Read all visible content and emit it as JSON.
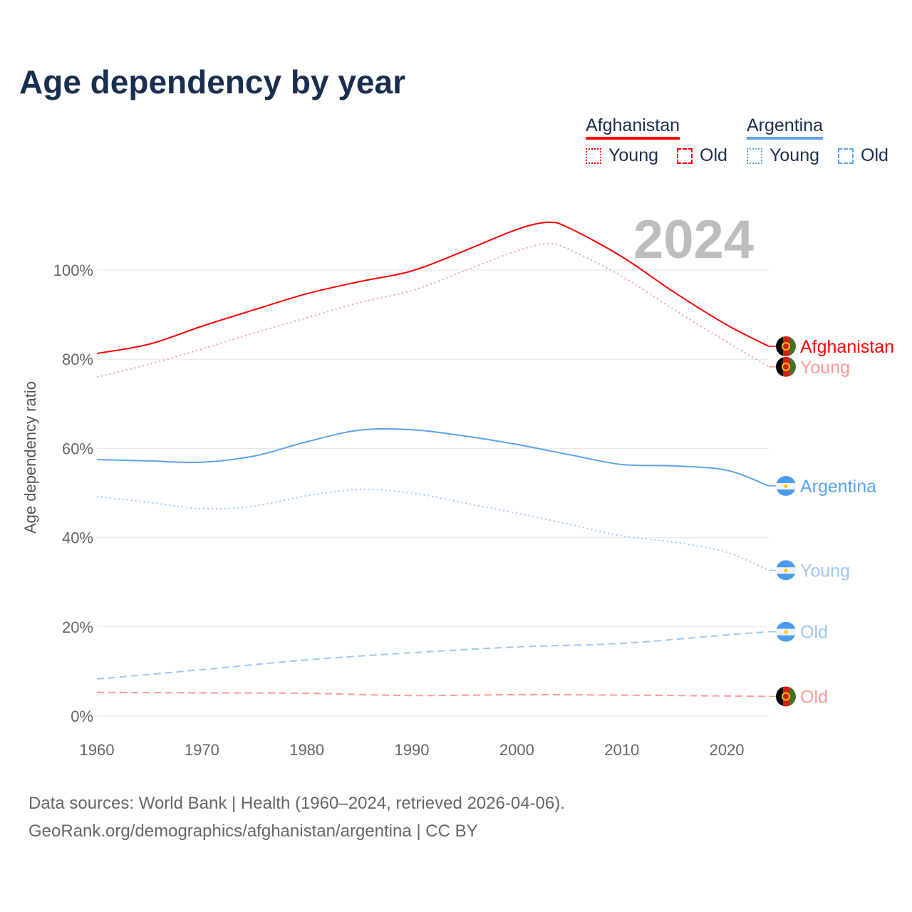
{
  "title": "Age dependency by year",
  "legend": {
    "groups": [
      {
        "country": "Afghanistan",
        "color": "#ff0000",
        "young": "Young",
        "old": "Old"
      },
      {
        "country": "Argentina",
        "color": "#5ba4ec",
        "young": "Young",
        "old": "Old"
      }
    ]
  },
  "year_watermark": "2024",
  "footer": {
    "line1": "Data sources: World Bank | Health (1960–2024, retrieved 2026-04-06).",
    "line2": "GeoRank.org/demographics/afghanistan/argentina | CC BY"
  },
  "chart_data": {
    "type": "line",
    "title": "Age dependency by year",
    "xlabel": "",
    "ylabel": "Age dependency ratio",
    "xlim": [
      1960,
      2024
    ],
    "ylim": [
      0,
      110
    ],
    "x_ticks": [
      "1960",
      "1970",
      "1980",
      "1990",
      "2000",
      "2010",
      "2020"
    ],
    "y_ticks": [
      "0%",
      "20%",
      "40%",
      "60%",
      "80%",
      "100%"
    ],
    "grid": true,
    "series": [
      {
        "name": "Afghanistan",
        "end_label": "Afghanistan",
        "flag": "afghanistan",
        "color": "#ff0000",
        "dash": "solid",
        "x": [
          1960,
          1965,
          1970,
          1975,
          1980,
          1985,
          1990,
          1995,
          2000,
          2003,
          2005,
          2010,
          2015,
          2020,
          2024
        ],
        "y": [
          81.3,
          83.4,
          87.4,
          91.1,
          94.7,
          97.4,
          99.8,
          104.3,
          109.1,
          110.7,
          109.4,
          103.0,
          95.0,
          87.7,
          82.9
        ]
      },
      {
        "name": "Afghanistan Young",
        "end_label": "Young",
        "flag": "afghanistan",
        "color": "#ff9999",
        "dash": "dotted",
        "x": [
          1960,
          1965,
          1970,
          1975,
          1980,
          1985,
          1990,
          1995,
          2000,
          2003,
          2005,
          2010,
          2015,
          2020,
          2024
        ],
        "y": [
          76.0,
          78.9,
          82.3,
          85.9,
          89.3,
          92.7,
          95.4,
          99.8,
          104.3,
          105.9,
          104.6,
          98.6,
          91.1,
          83.9,
          78.3
        ]
      },
      {
        "name": "Argentina",
        "end_label": "Argentina",
        "flag": "argentina",
        "color": "#5ba4ec",
        "dash": "solid",
        "x": [
          1960,
          1965,
          1970,
          1975,
          1980,
          1985,
          1990,
          1995,
          2000,
          2005,
          2010,
          2015,
          2020,
          2024
        ],
        "y": [
          57.5,
          57.2,
          56.9,
          58.3,
          61.5,
          64.1,
          64.2,
          62.8,
          60.9,
          58.6,
          56.4,
          56.1,
          55.1,
          51.6
        ]
      },
      {
        "name": "Argentina Young",
        "end_label": "Young",
        "flag": "argentina",
        "color": "#9fc8f2",
        "dash": "dotted",
        "x": [
          1960,
          1965,
          1970,
          1975,
          1980,
          1985,
          1990,
          1995,
          2000,
          2005,
          2010,
          2015,
          2020,
          2024
        ],
        "y": [
          49.2,
          47.9,
          46.5,
          47.1,
          49.4,
          50.8,
          50.0,
          47.8,
          45.5,
          43.0,
          40.4,
          39.0,
          36.7,
          32.7
        ]
      },
      {
        "name": "Argentina Old",
        "end_label": "Old",
        "flag": "argentina",
        "color": "#9fc8f2",
        "dash": "dashed",
        "x": [
          1960,
          1970,
          1980,
          1990,
          2000,
          2010,
          2020,
          2024
        ],
        "y": [
          8.3,
          10.4,
          12.6,
          14.2,
          15.5,
          16.3,
          18.2,
          18.9
        ]
      },
      {
        "name": "Afghanistan Old",
        "end_label": "Old",
        "flag": "afghanistan",
        "color": "#ff9999",
        "dash": "dashed",
        "x": [
          1960,
          1970,
          1980,
          1990,
          2000,
          2010,
          2020,
          2024
        ],
        "y": [
          5.3,
          5.2,
          5.1,
          4.6,
          4.8,
          4.7,
          4.5,
          4.4
        ]
      }
    ]
  }
}
